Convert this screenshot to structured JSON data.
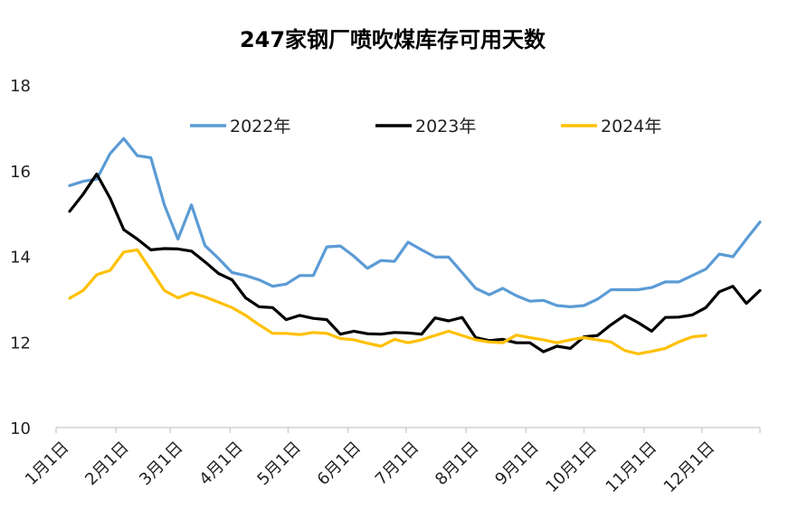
{
  "chart_data": {
    "type": "line",
    "title": "247家钢厂喷吹煤库存可用天数",
    "xlabel": "",
    "ylabel": "",
    "ylim": [
      10,
      18
    ],
    "yticks": [
      10,
      12,
      14,
      16,
      18
    ],
    "x_range_days": [
      1,
      365
    ],
    "xticks": [
      {
        "label": "1月1日",
        "day": 1
      },
      {
        "label": "2月1日",
        "day": 32
      },
      {
        "label": "3月1日",
        "day": 60
      },
      {
        "label": "4月1日",
        "day": 91
      },
      {
        "label": "5月1日",
        "day": 121
      },
      {
        "label": "6月1日",
        "day": 152
      },
      {
        "label": "7月1日",
        "day": 182
      },
      {
        "label": "8月1日",
        "day": 213
      },
      {
        "label": "9月1日",
        "day": 244
      },
      {
        "label": "10月1日",
        "day": 274
      },
      {
        "label": "11月1日",
        "day": 305
      },
      {
        "label": "12月1日",
        "day": 335
      }
    ],
    "grid": false,
    "legend_position": "top-center",
    "series": [
      {
        "name": "2022年",
        "color": "#5b9bd5",
        "x": [
          8,
          15,
          22,
          29,
          36,
          43,
          50,
          57,
          64,
          71,
          78,
          85,
          92,
          99,
          106,
          113,
          120,
          127,
          134,
          141,
          148,
          155,
          162,
          169,
          176,
          183,
          190,
          197,
          204,
          211,
          218,
          225,
          232,
          239,
          246,
          253,
          260,
          267,
          274,
          281,
          288,
          295,
          302,
          309,
          316,
          323,
          330,
          337,
          344,
          351,
          358,
          365
        ],
        "y": [
          15.65,
          15.75,
          15.8,
          16.4,
          16.75,
          16.35,
          16.3,
          15.2,
          14.4,
          15.2,
          14.25,
          13.95,
          13.62,
          13.55,
          13.45,
          13.3,
          13.35,
          13.55,
          13.55,
          14.22,
          14.24,
          14.0,
          13.72,
          13.9,
          13.88,
          14.33,
          14.15,
          13.98,
          13.98,
          13.62,
          13.25,
          13.1,
          13.25,
          13.08,
          12.95,
          12.97,
          12.85,
          12.82,
          12.85,
          13.0,
          13.22,
          13.22,
          13.22,
          13.27,
          13.4,
          13.4,
          13.55,
          13.7,
          14.05,
          13.99,
          14.4,
          14.8
        ]
      },
      {
        "name": "2023年",
        "color": "#000000",
        "x": [
          8,
          15,
          22,
          29,
          36,
          43,
          50,
          57,
          64,
          71,
          78,
          85,
          92,
          99,
          106,
          113,
          120,
          127,
          134,
          141,
          148,
          155,
          162,
          169,
          176,
          183,
          190,
          197,
          204,
          211,
          218,
          225,
          232,
          239,
          246,
          253,
          260,
          267,
          274,
          281,
          288,
          295,
          302,
          309,
          316,
          323,
          330,
          337,
          344,
          351,
          358,
          365
        ],
        "y": [
          15.05,
          15.45,
          15.92,
          15.35,
          14.62,
          14.4,
          14.15,
          14.18,
          14.17,
          14.12,
          13.87,
          13.6,
          13.45,
          13.03,
          12.82,
          12.8,
          12.52,
          12.62,
          12.55,
          12.52,
          12.18,
          12.25,
          12.19,
          12.18,
          12.22,
          12.21,
          12.18,
          12.56,
          12.49,
          12.57,
          12.1,
          12.03,
          12.06,
          11.98,
          11.98,
          11.77,
          11.9,
          11.85,
          12.12,
          12.15,
          12.4,
          12.62,
          12.45,
          12.25,
          12.57,
          12.58,
          12.63,
          12.8,
          13.17,
          13.3,
          12.9,
          13.2
        ]
      },
      {
        "name": "2024年",
        "color": "#ffc000",
        "x": [
          8,
          15,
          22,
          29,
          36,
          43,
          50,
          57,
          64,
          71,
          78,
          85,
          92,
          99,
          106,
          113,
          120,
          127,
          134,
          141,
          148,
          155,
          162,
          169,
          176,
          183,
          190,
          197,
          204,
          211,
          218,
          225,
          232,
          239,
          246,
          253,
          260,
          267,
          274,
          281,
          288,
          295,
          302,
          309,
          316,
          323,
          330,
          337
        ],
        "y": [
          13.02,
          13.2,
          13.57,
          13.67,
          14.1,
          14.15,
          13.68,
          13.2,
          13.03,
          13.15,
          13.05,
          12.93,
          12.8,
          12.62,
          12.4,
          12.2,
          12.2,
          12.17,
          12.22,
          12.2,
          12.08,
          12.05,
          11.97,
          11.9,
          12.06,
          11.98,
          12.05,
          12.15,
          12.25,
          12.15,
          12.05,
          12.0,
          11.98,
          12.16,
          12.1,
          12.05,
          11.98,
          12.05,
          12.1,
          12.05,
          12.0,
          11.8,
          11.72,
          11.78,
          11.85,
          12.0,
          12.12,
          12.15
        ]
      }
    ]
  }
}
